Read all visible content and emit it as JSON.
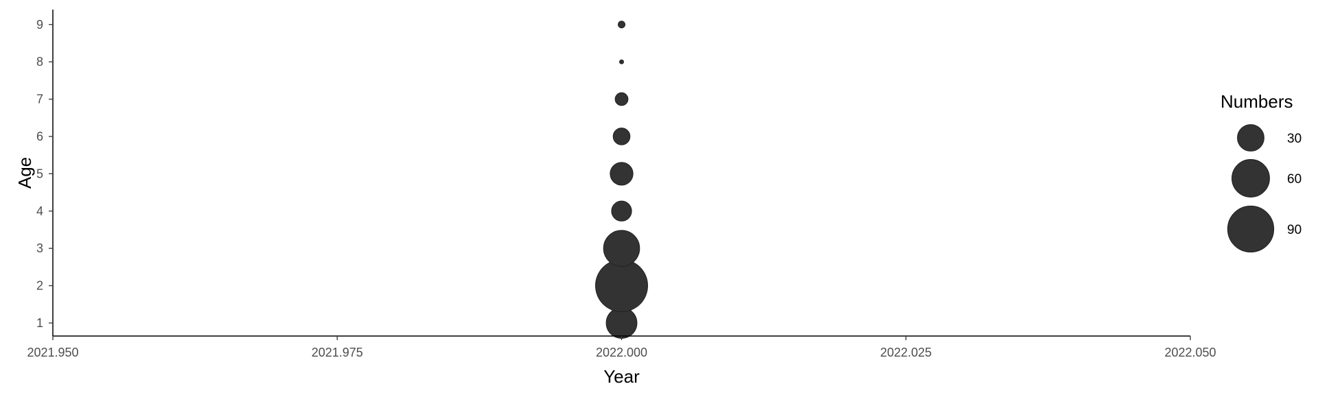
{
  "chart_data": {
    "type": "scatter",
    "xlabel": "Year",
    "ylabel": "Age",
    "xlim": [
      2021.95,
      2022.05
    ],
    "ylim": [
      0.65,
      9.4
    ],
    "x_ticks": [
      2021.95,
      2021.975,
      2022.0,
      2022.025,
      2022.05
    ],
    "x_tick_labels": [
      "2021.950",
      "2021.975",
      "2022.000",
      "2022.025",
      "2022.050"
    ],
    "y_ticks": [
      1,
      2,
      3,
      4,
      5,
      6,
      7,
      8,
      9
    ],
    "y_tick_labels": [
      "1",
      "2",
      "3",
      "4",
      "5",
      "6",
      "7",
      "8",
      "9"
    ],
    "size_scale": {
      "max_value": 115
    },
    "points": [
      {
        "x": 2022.0,
        "y": 1,
        "size": 40
      },
      {
        "x": 2022.0,
        "y": 2,
        "size": 115
      },
      {
        "x": 2022.0,
        "y": 3,
        "size": 55
      },
      {
        "x": 2022.0,
        "y": 4,
        "size": 17
      },
      {
        "x": 2022.0,
        "y": 5,
        "size": 22
      },
      {
        "x": 2022.0,
        "y": 6,
        "size": 12
      },
      {
        "x": 2022.0,
        "y": 7,
        "size": 7
      },
      {
        "x": 2022.0,
        "y": 8,
        "size": 0.7
      },
      {
        "x": 2022.0,
        "y": 9,
        "size": 2
      }
    ],
    "point_color": "#333333",
    "legend": {
      "title": "Numbers",
      "placement": "right",
      "entries": [
        {
          "label": "30",
          "value": 30
        },
        {
          "label": "60",
          "value": 60
        },
        {
          "label": "90",
          "value": 90
        }
      ]
    },
    "grid": false
  }
}
